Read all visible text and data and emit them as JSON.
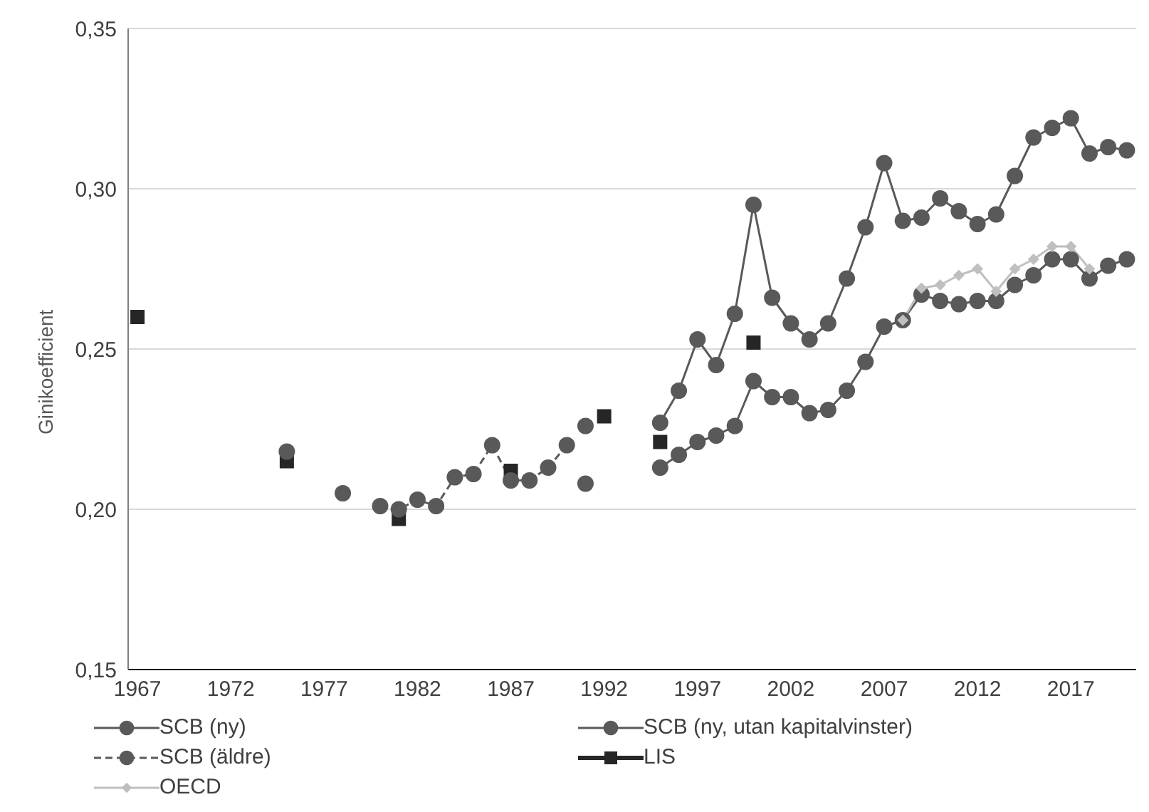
{
  "chart_data": {
    "type": "line",
    "ylabel": "Ginikoefficient",
    "xlim": [
      1966.5,
      2020.5
    ],
    "xticks": [
      1967,
      1972,
      1977,
      1982,
      1987,
      1992,
      1997,
      2002,
      2007,
      2012,
      2017
    ],
    "ylim": [
      0.15,
      0.35
    ],
    "yticks": [
      {
        "value": 0.15,
        "label": "0,15"
      },
      {
        "value": 0.2,
        "label": "0,20"
      },
      {
        "value": 0.25,
        "label": "0,25"
      },
      {
        "value": 0.3,
        "label": "0,30"
      },
      {
        "value": 0.35,
        "label": "0,35"
      }
    ],
    "grid": "y",
    "legend": "bottom",
    "series": [
      {
        "name": "SCB (ny)",
        "color": "#595959",
        "marker": "circle",
        "line_style": "solid",
        "x": [
          1991,
          1992,
          1993,
          1994,
          1995,
          1996,
          1997,
          1998,
          1999,
          2000,
          2001,
          2002,
          2003,
          2004,
          2005,
          2006,
          2007,
          2008,
          2009,
          2010,
          2011,
          2012,
          2013,
          2014,
          2015,
          2016,
          2017,
          2018,
          2019,
          2020
        ],
        "values": [
          0.226,
          null,
          null,
          null,
          0.227,
          0.237,
          0.253,
          0.245,
          0.261,
          0.295,
          0.266,
          0.258,
          0.253,
          0.258,
          0.272,
          0.288,
          0.308,
          0.29,
          0.291,
          0.297,
          0.293,
          0.289,
          0.292,
          0.304,
          0.316,
          0.319,
          0.322,
          0.311,
          0.313,
          0.312
        ]
      },
      {
        "name": "SCB (ny, utan kapitalvinster)",
        "color": "#595959",
        "marker": "circle",
        "line_style": "solid",
        "x": [
          1991,
          1992,
          1993,
          1994,
          1995,
          1996,
          1997,
          1998,
          1999,
          2000,
          2001,
          2002,
          2003,
          2004,
          2005,
          2006,
          2007,
          2008,
          2009,
          2010,
          2011,
          2012,
          2013,
          2014,
          2015,
          2016,
          2017,
          2018,
          2019,
          2020
        ],
        "values": [
          0.208,
          null,
          null,
          null,
          0.213,
          0.217,
          0.221,
          0.223,
          0.226,
          0.24,
          0.235,
          0.235,
          0.23,
          0.231,
          0.237,
          0.246,
          0.257,
          0.259,
          0.267,
          0.265,
          0.264,
          0.265,
          0.265,
          0.27,
          0.273,
          0.278,
          0.278,
          0.272,
          0.276,
          0.278
        ]
      },
      {
        "name": "SCB (äldre)",
        "color": "#595959",
        "marker": "circle",
        "line_style": "dashed",
        "x": [
          1975,
          1976,
          1977,
          1978,
          1979,
          1980,
          1981,
          1982,
          1983,
          1984,
          1985,
          1986,
          1987,
          1988,
          1989,
          1990
        ],
        "values": [
          0.218,
          null,
          null,
          0.205,
          null,
          0.201,
          0.2,
          0.203,
          0.201,
          0.21,
          0.211,
          0.22,
          0.209,
          0.209,
          0.213,
          0.22
        ]
      },
      {
        "name": "LIS",
        "type": "scatter",
        "color": "#262626",
        "marker": "square",
        "x": [
          1967,
          1975,
          1981,
          1987,
          1992,
          1995,
          2000
        ],
        "values": [
          0.26,
          0.215,
          0.197,
          0.212,
          0.229,
          0.221,
          0.252
        ]
      },
      {
        "name": "OECD",
        "color": "#bfbfbf",
        "marker": "diamond",
        "line_style": "solid",
        "x": [
          2008,
          2009,
          2010,
          2011,
          2012,
          2013,
          2014,
          2015,
          2016,
          2017,
          2018
        ],
        "values": [
          0.259,
          0.269,
          0.27,
          0.273,
          0.275,
          0.268,
          0.275,
          0.278,
          0.282,
          0.282,
          0.275
        ]
      }
    ]
  }
}
